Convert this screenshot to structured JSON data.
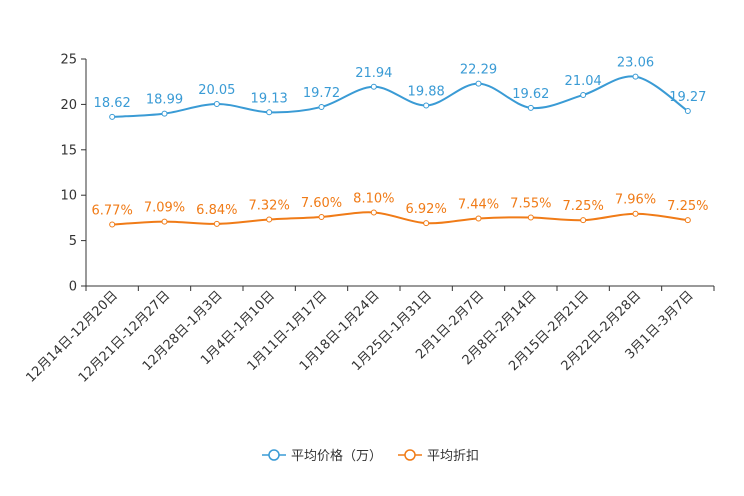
{
  "chart_data": {
    "type": "line",
    "title": "",
    "xlabel": "",
    "ylabel": "",
    "ylim": [
      0,
      25
    ],
    "yticks": [
      0,
      5,
      10,
      15,
      20,
      25
    ],
    "categories": [
      "12月14日-12月20日",
      "12月21日-12月27日",
      "12月28日-1月3日",
      "1月4日-1月10日",
      "1月11日-1月17日",
      "1月18日-1月24日",
      "1月25日-1月31日",
      "2月1日-2月7日",
      "2月8日-2月14日",
      "2月15日-2月21日",
      "2月22日-2月28日",
      "3月1日-3月7日"
    ],
    "series": [
      {
        "name": "平均价格（万）",
        "color": "#3a9bd5",
        "values": [
          18.62,
          18.99,
          20.05,
          19.13,
          19.72,
          21.94,
          19.88,
          22.29,
          19.62,
          21.04,
          23.06,
          19.27
        ],
        "labels": [
          "18.62",
          "18.99",
          "20.05",
          "19.13",
          "19.72",
          "21.94",
          "19.88",
          "22.29",
          "19.62",
          "21.04",
          "23.06",
          "19.27"
        ]
      },
      {
        "name": "平均折扣",
        "color": "#f07b17",
        "values": [
          6.77,
          7.09,
          6.84,
          7.32,
          7.6,
          8.1,
          6.92,
          7.44,
          7.55,
          7.25,
          7.96,
          7.25
        ],
        "labels": [
          "6.77%",
          "7.09%",
          "6.84%",
          "7.32%",
          "7.60%",
          "8.10%",
          "6.92%",
          "7.44%",
          "7.55%",
          "7.25%",
          "7.96%",
          "7.25%"
        ]
      }
    ],
    "legend_position": "bottom-center"
  }
}
